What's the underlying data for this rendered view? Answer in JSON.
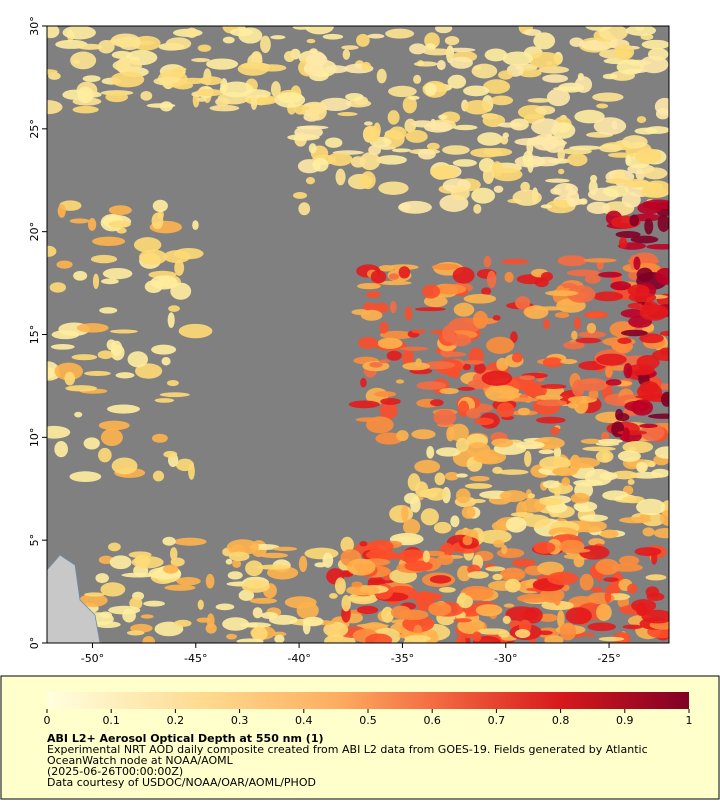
{
  "map": {
    "xlim": [
      -52.2,
      -22.1
    ],
    "ylim": [
      0,
      30
    ],
    "xticks": [
      {
        "value": -50,
        "label": "-50°"
      },
      {
        "value": -45,
        "label": "-45°"
      },
      {
        "value": -40,
        "label": "-40°"
      },
      {
        "value": -35,
        "label": "-35°"
      },
      {
        "value": -30,
        "label": "-30°"
      },
      {
        "value": -25,
        "label": "-25°"
      }
    ],
    "yticks": [
      {
        "value": 0,
        "label": "0°"
      },
      {
        "value": 5,
        "label": "5°"
      },
      {
        "value": 10,
        "label": "10°"
      },
      {
        "value": 15,
        "label": "15°"
      },
      {
        "value": 20,
        "label": "20°"
      },
      {
        "value": 25,
        "label": "25°"
      },
      {
        "value": 30,
        "label": "30°"
      }
    ]
  },
  "colorbar": {
    "range": [
      0,
      1
    ],
    "ticks": [
      0,
      0.1,
      0.2,
      0.3,
      0.4,
      0.5,
      0.6,
      0.7,
      0.8,
      0.9,
      1
    ]
  },
  "caption": {
    "title": "ABI L2+ Aerosol Optical Depth at 550 nm (1)",
    "lines": [
      "Experimental NRT AOD daily composite created from ABI L2 data from GOES-19. Fields generated by Atlantic",
      "OceanWatch node at NOAA/AOML",
      "(2025-06-26T00:00:00Z)",
      "Data courtesy of USDOC/NOAA/OAR/AOML/PHOD"
    ]
  }
}
